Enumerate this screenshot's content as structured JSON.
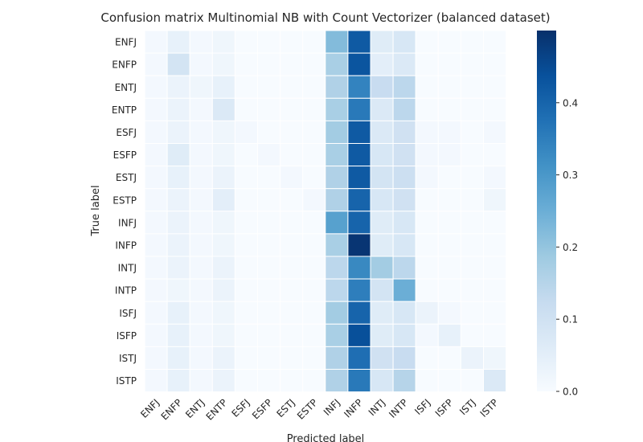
{
  "chart_data": {
    "type": "heatmap",
    "title": "Confusion matrix Multinomial NB with Count Vectorizer (balanced dataset)",
    "xlabel": "Predicted label",
    "ylabel": "True label",
    "rows": [
      "ENFJ",
      "ENFP",
      "ENTJ",
      "ENTP",
      "ESFJ",
      "ESFP",
      "ESTJ",
      "ESTP",
      "INFJ",
      "INFP",
      "INTJ",
      "INTP",
      "ISFJ",
      "ISFP",
      "ISTJ",
      "ISTP"
    ],
    "cols": [
      "ENFJ",
      "ENFP",
      "ENTJ",
      "ENTP",
      "ESFJ",
      "ESFP",
      "ESTJ",
      "ESTP",
      "INFJ",
      "INFP",
      "INTJ",
      "INTP",
      "ISFJ",
      "ISFP",
      "ISTJ",
      "ISTP"
    ],
    "colorbar": {
      "min": 0.0,
      "max": 0.5,
      "ticks": [
        "0.0",
        "0.1",
        "0.2",
        "0.3",
        "0.4"
      ],
      "tick_values": [
        0.0,
        0.1,
        0.2,
        0.3,
        0.4
      ]
    },
    "colormap": "Blues",
    "grid": true,
    "values": [
      [
        0.01,
        0.04,
        0.01,
        0.02,
        0.0,
        0.0,
        0.0,
        0.0,
        0.22,
        0.42,
        0.06,
        0.08,
        0.0,
        0.0,
        0.0,
        0.0
      ],
      [
        0.01,
        0.09,
        0.01,
        0.02,
        0.0,
        0.0,
        0.0,
        0.0,
        0.17,
        0.43,
        0.05,
        0.07,
        0.0,
        0.0,
        0.0,
        0.0
      ],
      [
        0.01,
        0.03,
        0.02,
        0.04,
        0.0,
        0.0,
        0.0,
        0.0,
        0.16,
        0.34,
        0.12,
        0.14,
        0.0,
        0.0,
        0.0,
        0.0
      ],
      [
        0.01,
        0.03,
        0.01,
        0.07,
        0.0,
        0.0,
        0.0,
        0.0,
        0.17,
        0.36,
        0.07,
        0.14,
        0.0,
        0.0,
        0.0,
        0.0
      ],
      [
        0.01,
        0.03,
        0.01,
        0.02,
        0.01,
        0.0,
        0.0,
        0.0,
        0.18,
        0.42,
        0.07,
        0.1,
        0.01,
        0.01,
        0.0,
        0.01
      ],
      [
        0.01,
        0.06,
        0.01,
        0.02,
        0.0,
        0.01,
        0.0,
        0.0,
        0.17,
        0.42,
        0.08,
        0.1,
        0.01,
        0.01,
        0.0,
        0.0
      ],
      [
        0.01,
        0.04,
        0.01,
        0.03,
        0.0,
        0.0,
        0.01,
        0.0,
        0.16,
        0.42,
        0.09,
        0.11,
        0.01,
        0.0,
        0.0,
        0.01
      ],
      [
        0.01,
        0.03,
        0.01,
        0.05,
        0.0,
        0.0,
        0.0,
        0.01,
        0.16,
        0.4,
        0.08,
        0.1,
        0.0,
        0.0,
        0.0,
        0.02
      ],
      [
        0.01,
        0.03,
        0.01,
        0.02,
        0.0,
        0.0,
        0.0,
        0.0,
        0.28,
        0.4,
        0.06,
        0.08,
        0.0,
        0.0,
        0.0,
        0.0
      ],
      [
        0.01,
        0.03,
        0.01,
        0.02,
        0.0,
        0.0,
        0.0,
        0.0,
        0.17,
        0.49,
        0.06,
        0.08,
        0.0,
        0.0,
        0.0,
        0.0
      ],
      [
        0.01,
        0.03,
        0.01,
        0.03,
        0.0,
        0.0,
        0.0,
        0.0,
        0.14,
        0.33,
        0.18,
        0.14,
        0.0,
        0.0,
        0.0,
        0.0
      ],
      [
        0.01,
        0.02,
        0.01,
        0.03,
        0.0,
        0.0,
        0.0,
        0.0,
        0.14,
        0.35,
        0.09,
        0.25,
        0.0,
        0.0,
        0.0,
        0.0
      ],
      [
        0.01,
        0.04,
        0.01,
        0.02,
        0.0,
        0.0,
        0.0,
        0.0,
        0.18,
        0.4,
        0.06,
        0.08,
        0.03,
        0.01,
        0.0,
        0.0
      ],
      [
        0.01,
        0.04,
        0.01,
        0.02,
        0.0,
        0.0,
        0.0,
        0.0,
        0.17,
        0.44,
        0.06,
        0.08,
        0.01,
        0.04,
        0.0,
        0.0
      ],
      [
        0.01,
        0.04,
        0.01,
        0.03,
        0.0,
        0.0,
        0.0,
        0.0,
        0.16,
        0.38,
        0.1,
        0.12,
        0.0,
        0.0,
        0.03,
        0.02
      ],
      [
        0.01,
        0.04,
        0.01,
        0.03,
        0.0,
        0.0,
        0.0,
        0.0,
        0.16,
        0.36,
        0.08,
        0.15,
        0.0,
        0.0,
        0.0,
        0.07
      ]
    ]
  }
}
